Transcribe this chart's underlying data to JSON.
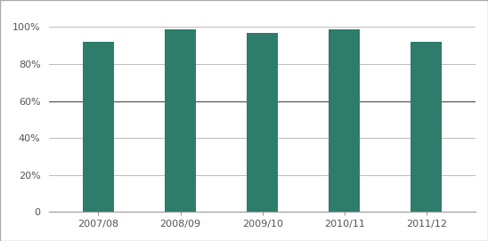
{
  "categories": [
    "2007/08",
    "2008/09",
    "2009/10",
    "2010/11",
    "2011/12"
  ],
  "values": [
    0.92,
    0.99,
    0.97,
    0.99,
    0.92
  ],
  "bar_color": "#2e7d6b",
  "ylim": [
    0,
    1.08
  ],
  "yticks": [
    0,
    0.2,
    0.4,
    0.6,
    0.8,
    1.0
  ],
  "yticklabels": [
    "0",
    "20%",
    "40%",
    "60%",
    "80%",
    "100%"
  ],
  "background_color": "#ffffff",
  "grid_color": "#bbbbbb",
  "grid_color_60": "#555555",
  "bar_width": 0.38,
  "border_color": "#aaaaaa",
  "tick_label_color": "#555555",
  "figsize": [
    5.48,
    2.71
  ],
  "dpi": 100
}
